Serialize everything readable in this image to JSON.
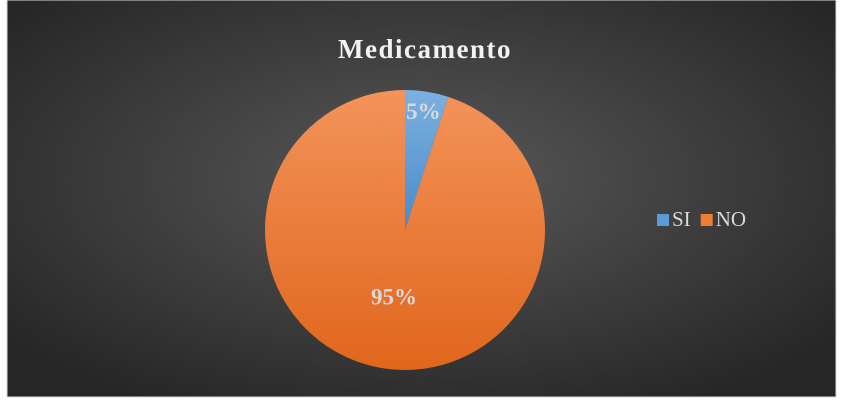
{
  "chart_data": {
    "type": "pie",
    "title": "Medicamento",
    "categories": [
      "SI",
      "NO"
    ],
    "values": [
      5,
      95
    ],
    "value_labels": [
      "5%",
      "95%"
    ],
    "colors": [
      "#5b9bd5",
      "#ed7d31"
    ],
    "legend": "right"
  }
}
